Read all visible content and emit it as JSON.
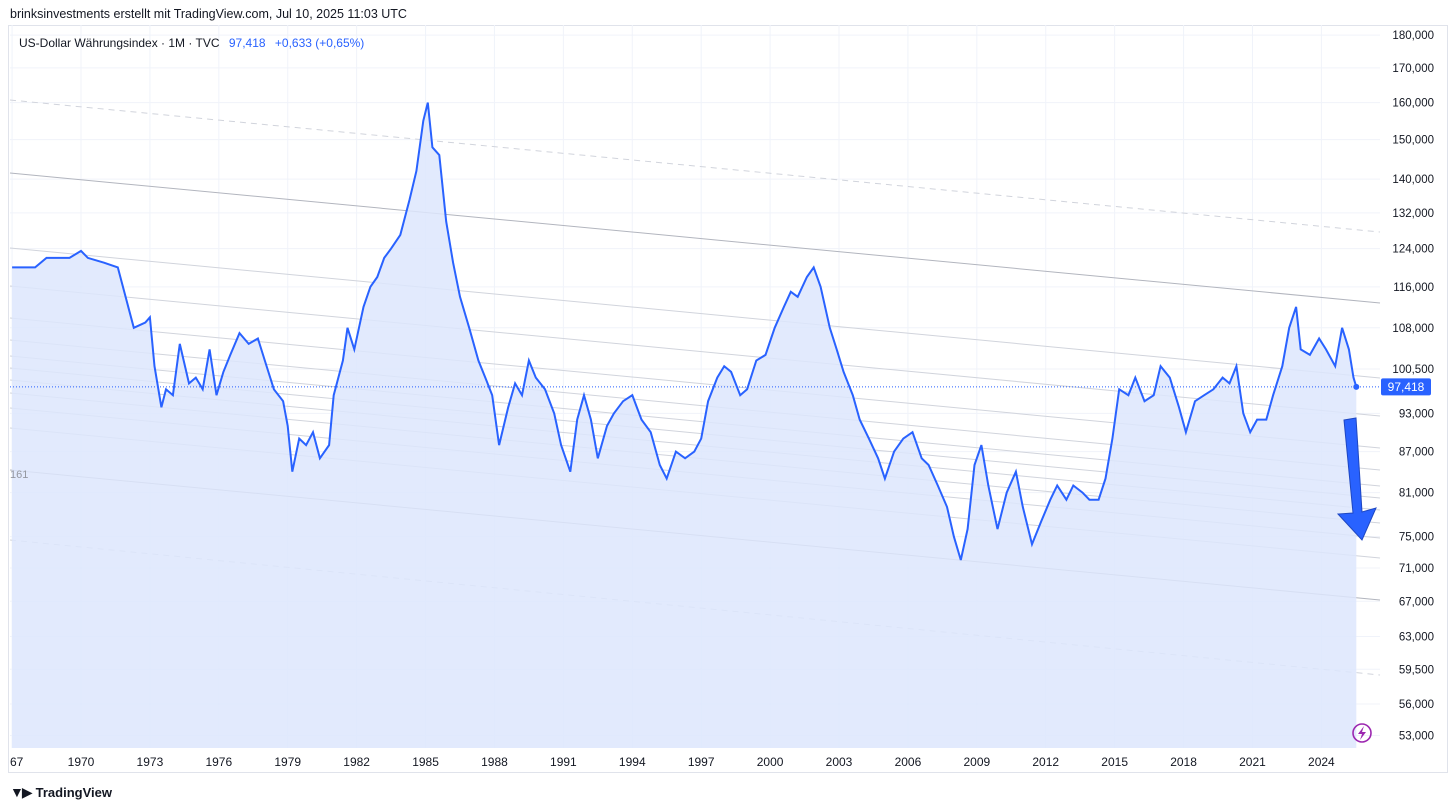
{
  "header": {
    "credit": "brinksinvestments erstellt mit TradingView.com, Jul 10, 2025 11:03 UTC"
  },
  "legend": {
    "symbol": "US-Dollar Währungsindex · 1M · TVC",
    "last": "97,418",
    "change": "+0,633 (+0,65%)"
  },
  "footer": {
    "brand": "TradingView"
  },
  "colors": {
    "line": "#2962ff",
    "area": "#dde6fd",
    "channel": "#b2b5be",
    "arrow": "#2962ff",
    "tag": "#2962ff",
    "bolt": "#9c27b0"
  },
  "chart_data": {
    "type": "area",
    "title": "US-Dollar Währungsindex · 1M · TVC",
    "xlabel": "",
    "ylabel": "",
    "x_ticks": [
      "67",
      "1970",
      "1973",
      "1976",
      "1979",
      "1982",
      "1985",
      "1988",
      "1991",
      "1994",
      "1997",
      "2000",
      "2003",
      "2006",
      "2009",
      "2012",
      "2015",
      "2018",
      "2021",
      "2024"
    ],
    "y_ticks": [
      "180,000",
      "170,000",
      "160,000",
      "150,000",
      "140,000",
      "132,000",
      "124,000",
      "116,000",
      "108,000",
      "100,500",
      "93,000",
      "87,000",
      "81,000",
      "75,000",
      "71,000",
      "67,000",
      "63,000",
      "59,500",
      "56,000",
      "53,000"
    ],
    "y_scale": "log",
    "last_value_label": "97,418",
    "left_edge_label": "161",
    "series": [
      {
        "values": [
          [
            1967.0,
            120
          ],
          [
            1968.0,
            120
          ],
          [
            1968.5,
            122
          ],
          [
            1969.5,
            122
          ],
          [
            1970.0,
            123.5
          ],
          [
            1970.3,
            122
          ],
          [
            1971.0,
            121
          ],
          [
            1971.6,
            120
          ],
          [
            1972.0,
            113
          ],
          [
            1972.3,
            108
          ],
          [
            1972.8,
            109
          ],
          [
            1973.0,
            110
          ],
          [
            1973.2,
            101
          ],
          [
            1973.5,
            94
          ],
          [
            1973.7,
            97
          ],
          [
            1974.0,
            96
          ],
          [
            1974.3,
            105
          ],
          [
            1974.7,
            98
          ],
          [
            1975.0,
            99
          ],
          [
            1975.3,
            97
          ],
          [
            1975.6,
            104
          ],
          [
            1975.9,
            96
          ],
          [
            1976.2,
            100
          ],
          [
            1976.5,
            103
          ],
          [
            1976.9,
            107
          ],
          [
            1977.3,
            105
          ],
          [
            1977.7,
            106
          ],
          [
            1978.0,
            102
          ],
          [
            1978.4,
            97
          ],
          [
            1978.8,
            95
          ],
          [
            1979.0,
            91
          ],
          [
            1979.2,
            84
          ],
          [
            1979.5,
            89
          ],
          [
            1979.8,
            88
          ],
          [
            1980.1,
            90
          ],
          [
            1980.4,
            86
          ],
          [
            1980.8,
            88
          ],
          [
            1981.0,
            96
          ],
          [
            1981.4,
            102
          ],
          [
            1981.6,
            108
          ],
          [
            1981.9,
            104
          ],
          [
            1982.3,
            112
          ],
          [
            1982.6,
            116
          ],
          [
            1982.9,
            118
          ],
          [
            1983.2,
            122
          ],
          [
            1983.5,
            124
          ],
          [
            1983.9,
            127
          ],
          [
            1984.3,
            135
          ],
          [
            1984.6,
            142
          ],
          [
            1984.9,
            155
          ],
          [
            1985.1,
            160
          ],
          [
            1985.3,
            148
          ],
          [
            1985.6,
            146
          ],
          [
            1985.9,
            130
          ],
          [
            1986.2,
            121
          ],
          [
            1986.5,
            114
          ],
          [
            1986.9,
            108
          ],
          [
            1987.3,
            102
          ],
          [
            1987.6,
            99
          ],
          [
            1987.9,
            96
          ],
          [
            1988.2,
            88
          ],
          [
            1988.6,
            94
          ],
          [
            1988.9,
            98
          ],
          [
            1989.2,
            96
          ],
          [
            1989.5,
            102
          ],
          [
            1989.8,
            99
          ],
          [
            1990.2,
            97
          ],
          [
            1990.6,
            93
          ],
          [
            1990.9,
            88
          ],
          [
            1991.3,
            84
          ],
          [
            1991.6,
            92
          ],
          [
            1991.9,
            96
          ],
          [
            1992.2,
            92
          ],
          [
            1992.5,
            86
          ],
          [
            1992.9,
            91
          ],
          [
            1993.2,
            93
          ],
          [
            1993.6,
            95
          ],
          [
            1994.0,
            96
          ],
          [
            1994.4,
            92
          ],
          [
            1994.8,
            90
          ],
          [
            1995.2,
            85
          ],
          [
            1995.5,
            83
          ],
          [
            1995.9,
            87
          ],
          [
            1996.3,
            86
          ],
          [
            1996.7,
            87
          ],
          [
            1997.0,
            89
          ],
          [
            1997.3,
            95
          ],
          [
            1997.7,
            99
          ],
          [
            1998.0,
            101
          ],
          [
            1998.3,
            100
          ],
          [
            1998.7,
            96
          ],
          [
            1999.0,
            97
          ],
          [
            1999.4,
            102
          ],
          [
            1999.8,
            103
          ],
          [
            2000.2,
            108
          ],
          [
            2000.6,
            112
          ],
          [
            2000.9,
            115
          ],
          [
            2001.2,
            114
          ],
          [
            2001.6,
            118
          ],
          [
            2001.9,
            120
          ],
          [
            2002.2,
            116
          ],
          [
            2002.6,
            108
          ],
          [
            2002.9,
            104
          ],
          [
            2003.2,
            100
          ],
          [
            2003.6,
            96
          ],
          [
            2003.9,
            92
          ],
          [
            2004.3,
            89
          ],
          [
            2004.7,
            86
          ],
          [
            2005.0,
            83
          ],
          [
            2005.4,
            87
          ],
          [
            2005.8,
            89
          ],
          [
            2006.2,
            90
          ],
          [
            2006.6,
            86
          ],
          [
            2006.9,
            85
          ],
          [
            2007.3,
            82
          ],
          [
            2007.7,
            79
          ],
          [
            2008.0,
            75
          ],
          [
            2008.3,
            72
          ],
          [
            2008.6,
            76
          ],
          [
            2008.9,
            85
          ],
          [
            2009.2,
            88
          ],
          [
            2009.5,
            82
          ],
          [
            2009.9,
            76
          ],
          [
            2010.3,
            81
          ],
          [
            2010.7,
            84
          ],
          [
            2011.0,
            79
          ],
          [
            2011.4,
            74
          ],
          [
            2011.8,
            77
          ],
          [
            2012.2,
            80
          ],
          [
            2012.5,
            82
          ],
          [
            2012.9,
            80
          ],
          [
            2013.2,
            82
          ],
          [
            2013.6,
            81
          ],
          [
            2013.9,
            80
          ],
          [
            2014.3,
            80
          ],
          [
            2014.6,
            83
          ],
          [
            2014.9,
            89
          ],
          [
            2015.2,
            97
          ],
          [
            2015.6,
            96
          ],
          [
            2015.9,
            99
          ],
          [
            2016.3,
            95
          ],
          [
            2016.7,
            96
          ],
          [
            2017.0,
            101
          ],
          [
            2017.4,
            99
          ],
          [
            2017.8,
            94
          ],
          [
            2018.1,
            90
          ],
          [
            2018.5,
            95
          ],
          [
            2018.9,
            96
          ],
          [
            2019.3,
            97
          ],
          [
            2019.7,
            99
          ],
          [
            2020.0,
            98
          ],
          [
            2020.3,
            101
          ],
          [
            2020.6,
            93
          ],
          [
            2020.9,
            90
          ],
          [
            2021.2,
            92
          ],
          [
            2021.6,
            92
          ],
          [
            2021.9,
            96
          ],
          [
            2022.3,
            101
          ],
          [
            2022.6,
            108
          ],
          [
            2022.9,
            112
          ],
          [
            2023.1,
            104
          ],
          [
            2023.5,
            103
          ],
          [
            2023.9,
            106
          ],
          [
            2024.2,
            104
          ],
          [
            2024.6,
            101
          ],
          [
            2024.9,
            108
          ],
          [
            2025.2,
            104
          ],
          [
            2025.4,
            99
          ],
          [
            2025.52,
            97.418
          ]
        ]
      }
    ]
  }
}
